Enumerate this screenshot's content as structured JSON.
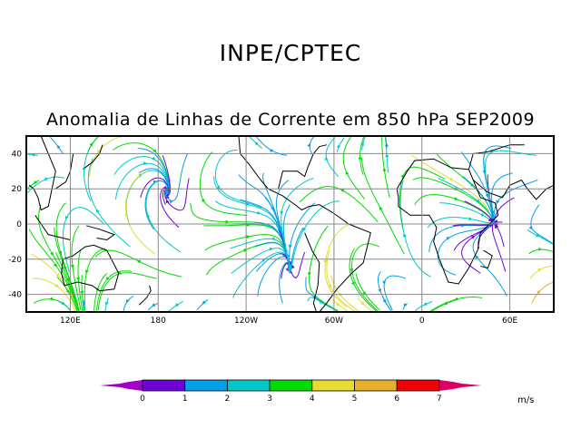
{
  "header": {
    "title": "INPE/CPTEC"
  },
  "map": {
    "title": "Anomalia de Linhas de Corrente em 850 hPa SEP2009",
    "lat_labels": [
      "40",
      "20",
      "0",
      "-20",
      "-40"
    ],
    "lat_values": [
      40,
      20,
      0,
      -20,
      -40
    ],
    "lon_labels": [
      "120E",
      "180",
      "120W",
      "60W",
      "0",
      "60E"
    ],
    "lon_values": [
      120,
      180,
      240,
      300,
      360,
      420
    ],
    "lon_range": [
      90,
      450
    ],
    "lat_range": [
      -50,
      50
    ]
  },
  "colorbar": {
    "labels": [
      "0",
      "1",
      "2",
      "3",
      "4",
      "5",
      "6",
      "7"
    ],
    "colors": [
      "#7000d8",
      "#00a0e8",
      "#00c8c8",
      "#00dc00",
      "#e6dc32",
      "#e6af2d",
      "#f00000"
    ],
    "low_color": "#a000c8",
    "high_color": "#dc0064",
    "units": "m/s"
  }
}
